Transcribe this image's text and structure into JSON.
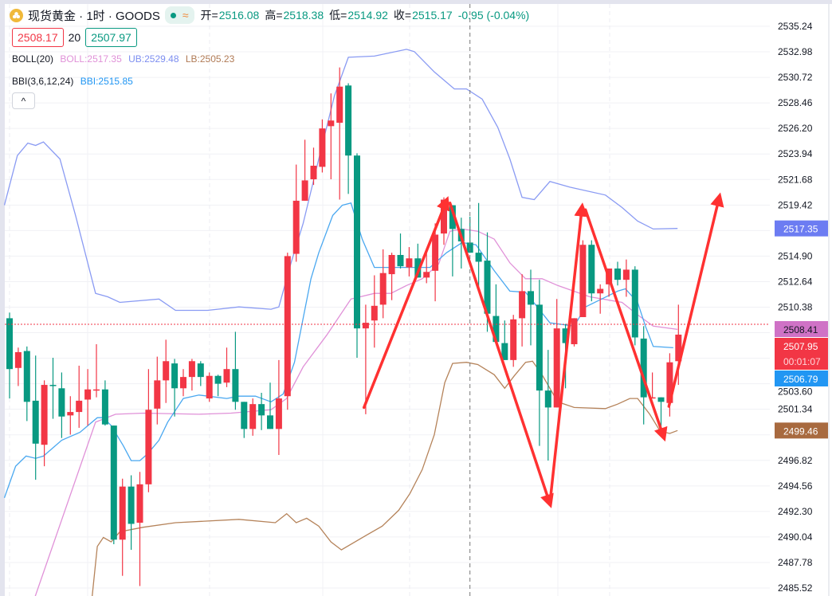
{
  "header": {
    "symbol": "现货黄金 · 1时 · GOODS",
    "status_icon": "green-dot-icon",
    "wave_symbol": "≈",
    "ohlc": {
      "open_label": "开=",
      "open": "2516.08",
      "high_label": "高=",
      "high": "2518.38",
      "low_label": "低=",
      "low": "2514.92",
      "close_label": "收=",
      "close": "2515.17",
      "change": "-0.95 (-0.04%)"
    }
  },
  "order_row": {
    "sell_price": "2508.17",
    "spread": "20",
    "buy_price": "2507.97"
  },
  "indicators": {
    "boll": {
      "name": "BOLL(20)",
      "mid": "BOLL:2517.35",
      "ub": "UB:2529.48",
      "lb": "LB:2505.23"
    },
    "bbi": {
      "name": "BBI(3,6,12,24)",
      "value": "BBI:2515.85"
    },
    "collapse_label": "^"
  },
  "colors": {
    "up": "#f23645",
    "down": "#089981",
    "ub": "#8a9bf3",
    "boll": "#e091d8",
    "lb": "#b5835a",
    "bbi": "#4aa8f0",
    "arrow": "#ff3131"
  },
  "chart_data": {
    "type": "candlestick",
    "ylim": [
      2485.52,
      2535.24
    ],
    "y_ticks": [
      "2535.24",
      "2532.98",
      "2530.72",
      "2528.46",
      "2526.20",
      "2523.94",
      "2521.68",
      "2519.42",
      "2514.90",
      "2512.64",
      "2510.38",
      "2503.60",
      "2501.34",
      "2496.82",
      "2494.56",
      "2492.30",
      "2490.04",
      "2487.78",
      "2485.52"
    ],
    "grid": true,
    "candles": [
      [
        2509.4,
        2509.9,
        2502.3,
        2504.9
      ],
      [
        2505.0,
        2506.8,
        2503.4,
        2506.4
      ],
      [
        2506.5,
        2506.9,
        2500.3,
        2502.0
      ],
      [
        2502.1,
        2506.1,
        2495.1,
        2498.3
      ],
      [
        2498.2,
        2503.9,
        2496.3,
        2503.5
      ],
      [
        2503.5,
        2505.9,
        2500.5,
        2503.4
      ],
      [
        2503.2,
        2504.6,
        2498.8,
        2500.7
      ],
      [
        2500.8,
        2502.5,
        2499.1,
        2501.1
      ],
      [
        2501.1,
        2505.2,
        2499.7,
        2502.1
      ],
      [
        2502.2,
        2504.9,
        2499.9,
        2503.1
      ],
      [
        2503.0,
        2507.1,
        2502.4,
        2503.1
      ],
      [
        2503.1,
        2503.9,
        2499.9,
        2500.0
      ],
      [
        2499.9,
        2499.9,
        2489.4,
        2489.8
      ],
      [
        2489.8,
        2495.2,
        2486.6,
        2494.5
      ],
      [
        2494.5,
        2495.5,
        2488.9,
        2491.2
      ],
      [
        2491.3,
        2495.8,
        2485.7,
        2494.7
      ],
      [
        2494.7,
        2504.9,
        2494.0,
        2501.3
      ],
      [
        2501.4,
        2506.0,
        2500.0,
        2503.9
      ],
      [
        2503.9,
        2507.5,
        2501.9,
        2505.6
      ],
      [
        2505.4,
        2505.8,
        2500.7,
        2503.2
      ],
      [
        2503.2,
        2504.9,
        2502.5,
        2504.2
      ],
      [
        2504.2,
        2505.8,
        2503.0,
        2505.6
      ],
      [
        2505.4,
        2505.6,
        2503.4,
        2504.2
      ],
      [
        2502.3,
        2504.6,
        2502.0,
        2504.3
      ],
      [
        2504.3,
        2504.4,
        2502.5,
        2503.6
      ],
      [
        2503.7,
        2506.8,
        2503.3,
        2504.9
      ],
      [
        2504.9,
        2508.2,
        2501.3,
        2502.0
      ],
      [
        2502.0,
        2502.0,
        2498.8,
        2499.6
      ],
      [
        2499.6,
        2502.3,
        2499.0,
        2501.8
      ],
      [
        2501.8,
        2502.8,
        2499.5,
        2500.8
      ],
      [
        2500.8,
        2503.7,
        2499.6,
        2499.6
      ],
      [
        2499.6,
        2505.7,
        2497.3,
        2502.3
      ],
      [
        2502.5,
        2515.2,
        2501.3,
        2514.9
      ],
      [
        2515.1,
        2523.0,
        2514.4,
        2519.8
      ],
      [
        2519.8,
        2525.2,
        2519.8,
        2521.6
      ],
      [
        2521.7,
        2524.5,
        2521.2,
        2522.9
      ],
      [
        2522.8,
        2527.0,
        2522.3,
        2526.2
      ],
      [
        2526.4,
        2529.3,
        2521.7,
        2526.9
      ],
      [
        2526.7,
        2531.6,
        2519.9,
        2529.9
      ],
      [
        2530.0,
        2530.2,
        2520.4,
        2523.8
      ],
      [
        2523.8,
        2524.0,
        2505.9,
        2508.5
      ],
      [
        2508.5,
        2510.6,
        2500.9,
        2509.0
      ],
      [
        2509.2,
        2513.2,
        2506.8,
        2510.5
      ],
      [
        2510.6,
        2515.5,
        2509.4,
        2513.4
      ],
      [
        2513.3,
        2515.2,
        2511.0,
        2515.0
      ],
      [
        2515.0,
        2516.9,
        2513.8,
        2514.0
      ],
      [
        2513.9,
        2515.7,
        2513.1,
        2514.7
      ],
      [
        2514.7,
        2516.0,
        2513.0,
        2513.0
      ],
      [
        2513.0,
        2515.6,
        2512.5,
        2513.5
      ],
      [
        2513.6,
        2517.8,
        2510.9,
        2516.8
      ],
      [
        2516.9,
        2520.1,
        2515.9,
        2519.9
      ],
      [
        2519.4,
        2519.4,
        2513.1,
        2517.3
      ],
      [
        2517.3,
        2518.3,
        2513.8,
        2516.2
      ],
      [
        2516.1,
        2518.4,
        2515.2,
        2515.2
      ],
      [
        2515.2,
        2519.6,
        2511.8,
        2514.4
      ],
      [
        2514.5,
        2517.0,
        2508.2,
        2509.8
      ],
      [
        2509.6,
        2512.4,
        2507.3,
        2507.3
      ],
      [
        2507.2,
        2509.2,
        2505.7,
        2505.7
      ],
      [
        2505.7,
        2509.7,
        2505.1,
        2509.3
      ],
      [
        2509.4,
        2513.3,
        2506.9,
        2511.8
      ],
      [
        2511.8,
        2513.7,
        2507.0,
        2510.6
      ],
      [
        2510.6,
        2512.8,
        2498.1,
        2503.0
      ],
      [
        2503.0,
        2506.6,
        2496.8,
        2501.5
      ],
      [
        2501.5,
        2511.1,
        2501.5,
        2508.5
      ],
      [
        2508.5,
        2508.9,
        2503.2,
        2507.2
      ],
      [
        2507.1,
        2509.4,
        2506.9,
        2509.4
      ],
      [
        2509.5,
        2516.3,
        2509.5,
        2515.9
      ],
      [
        2515.9,
        2516.3,
        2510.9,
        2511.6
      ],
      [
        2511.6,
        2512.4,
        2509.8,
        2512.0
      ],
      [
        2512.4,
        2513.8,
        2511.3,
        2513.8
      ],
      [
        2513.8,
        2514.4,
        2512.3,
        2512.8
      ],
      [
        2512.8,
        2514.6,
        2511.3,
        2513.7
      ],
      [
        2513.7,
        2514.0,
        2507.0,
        2507.7
      ],
      [
        2507.6,
        2508.7,
        2500.0,
        2502.4
      ],
      [
        2502.3,
        2504.6,
        2502.3,
        2502.4
      ],
      [
        2502.4,
        2502.4,
        2499.6,
        2502.0
      ],
      [
        2501.9,
        2506.3,
        2500.7,
        2505.5
      ],
      [
        2505.6,
        2510.6,
        2503.5,
        2507.95
      ]
    ],
    "candle_format": [
      "open",
      "high",
      "low",
      "close"
    ],
    "lines": {
      "ub": [
        [
          -0.6,
          2519.4
        ],
        [
          0.9,
          2523.8
        ],
        [
          2.1,
          2524.9
        ],
        [
          3.0,
          2524.7
        ],
        [
          3.9,
          2525.0
        ],
        [
          5.8,
          2523.5
        ],
        [
          7.6,
          2518.5
        ],
        [
          9.9,
          2511.6
        ],
        [
          11.3,
          2511.3
        ],
        [
          12.7,
          2510.8
        ],
        [
          17.2,
          2511.1
        ],
        [
          19.1,
          2510.1
        ],
        [
          22.8,
          2510.1
        ],
        [
          26.4,
          2510.4
        ],
        [
          30.1,
          2510.2
        ],
        [
          31.0,
          2510.4
        ],
        [
          32.4,
          2514.3
        ],
        [
          33.8,
          2517.8
        ],
        [
          35.6,
          2523.5
        ],
        [
          37.4,
          2529.1
        ],
        [
          39.0,
          2532.5
        ],
        [
          42.0,
          2532.6
        ],
        [
          45.7,
          2533.2
        ],
        [
          46.6,
          2533.0
        ],
        [
          48.9,
          2531.2
        ],
        [
          51.2,
          2529.7
        ],
        [
          52.6,
          2529.7
        ],
        [
          54.4,
          2528.8
        ],
        [
          56.2,
          2526.3
        ],
        [
          57.6,
          2523.5
        ],
        [
          59.0,
          2520.1
        ],
        [
          60.4,
          2519.9
        ],
        [
          62.2,
          2521.5
        ],
        [
          64.5,
          2521.0
        ],
        [
          68.6,
          2520.3
        ],
        [
          70.5,
          2519.2
        ],
        [
          72.3,
          2518.0
        ],
        [
          74.1,
          2517.3
        ],
        [
          76.9,
          2517.35
        ]
      ],
      "boll": [
        [
          2.6,
          2484.0
        ],
        [
          9.9,
          2500.2
        ],
        [
          12.2,
          2500.9
        ],
        [
          15.4,
          2501.0
        ],
        [
          21.8,
          2500.9
        ],
        [
          25.5,
          2501.0
        ],
        [
          30.1,
          2501.3
        ],
        [
          31.9,
          2502.3
        ],
        [
          33.8,
          2505.1
        ],
        [
          36.5,
          2507.9
        ],
        [
          39.3,
          2511.1
        ],
        [
          42.0,
          2511.6
        ],
        [
          43.9,
          2511.6
        ],
        [
          45.7,
          2512.3
        ],
        [
          47.5,
          2512.9
        ],
        [
          49.4,
          2514.2
        ],
        [
          50.7,
          2517.1
        ],
        [
          52.1,
          2517.3
        ],
        [
          53.9,
          2517.1
        ],
        [
          55.8,
          2516.4
        ],
        [
          57.6,
          2514.3
        ],
        [
          59.4,
          2512.9
        ],
        [
          61.3,
          2512.9
        ],
        [
          63.1,
          2512.3
        ],
        [
          66.8,
          2511.3
        ],
        [
          70.5,
          2510.8
        ],
        [
          72.3,
          2509.7
        ],
        [
          74.1,
          2508.7
        ],
        [
          76.9,
          2508.41
        ]
      ],
      "lb": [
        [
          9.4,
          2484.0
        ],
        [
          10.1,
          2489.2
        ],
        [
          10.8,
          2490.0
        ],
        [
          11.7,
          2489.6
        ],
        [
          12.7,
          2490.5
        ],
        [
          15.4,
          2490.9
        ],
        [
          19.1,
          2491.3
        ],
        [
          26.4,
          2491.6
        ],
        [
          30.6,
          2491.3
        ],
        [
          31.9,
          2492.1
        ],
        [
          33.0,
          2491.3
        ],
        [
          34.2,
          2491.7
        ],
        [
          35.6,
          2491.0
        ],
        [
          37.0,
          2489.6
        ],
        [
          38.2,
          2488.9
        ],
        [
          41.1,
          2490.2
        ],
        [
          42.9,
          2491.0
        ],
        [
          44.8,
          2492.4
        ],
        [
          46.1,
          2493.9
        ],
        [
          47.5,
          2496.0
        ],
        [
          48.9,
          2499.1
        ],
        [
          50.1,
          2503.7
        ],
        [
          51.0,
          2505.4
        ],
        [
          52.6,
          2505.5
        ],
        [
          53.9,
          2505.3
        ],
        [
          55.8,
          2504.4
        ],
        [
          57.0,
          2503.2
        ],
        [
          58.1,
          2504.3
        ],
        [
          59.4,
          2505.5
        ],
        [
          60.2,
          2505.6
        ],
        [
          61.3,
          2504.4
        ],
        [
          63.1,
          2502.0
        ],
        [
          65.0,
          2501.5
        ],
        [
          68.6,
          2501.4
        ],
        [
          70.0,
          2501.8
        ],
        [
          71.4,
          2502.3
        ],
        [
          72.3,
          2502.3
        ],
        [
          73.7,
          2500.9
        ],
        [
          74.9,
          2499.4
        ],
        [
          76.0,
          2499.2
        ],
        [
          76.9,
          2499.46
        ]
      ],
      "bbi": [
        [
          -0.6,
          2493.5
        ],
        [
          0.7,
          2496.3
        ],
        [
          1.9,
          2497.2
        ],
        [
          3.0,
          2497.0
        ],
        [
          3.9,
          2497.2
        ],
        [
          6.0,
          2498.6
        ],
        [
          8.1,
          2499.3
        ],
        [
          10.1,
          2500.6
        ],
        [
          10.8,
          2500.6
        ],
        [
          11.7,
          2499.9
        ],
        [
          13.1,
          2498.1
        ],
        [
          14.0,
          2496.8
        ],
        [
          15.0,
          2496.8
        ],
        [
          15.9,
          2497.4
        ],
        [
          17.2,
          2498.6
        ],
        [
          18.2,
          2500.2
        ],
        [
          20.0,
          2502.3
        ],
        [
          21.8,
          2502.6
        ],
        [
          25.0,
          2502.3
        ],
        [
          26.4,
          2502.5
        ],
        [
          28.3,
          2502.5
        ],
        [
          30.1,
          2502.0
        ],
        [
          31.5,
          2502.7
        ],
        [
          32.8,
          2505.5
        ],
        [
          33.8,
          2509.4
        ],
        [
          34.7,
          2512.9
        ],
        [
          35.6,
          2515.2
        ],
        [
          37.2,
          2518.5
        ],
        [
          38.3,
          2519.4
        ],
        [
          39.3,
          2519.6
        ],
        [
          40.6,
          2516.4
        ],
        [
          42.0,
          2513.9
        ],
        [
          48.4,
          2513.9
        ],
        [
          50.3,
          2515.2
        ],
        [
          52.1,
          2516.1
        ],
        [
          53.7,
          2515.9
        ],
        [
          55.8,
          2513.6
        ],
        [
          57.6,
          2511.8
        ],
        [
          59.4,
          2511.7
        ],
        [
          62.2,
          2509.0
        ],
        [
          65.0,
          2508.7
        ],
        [
          66.3,
          2510.4
        ],
        [
          70.0,
          2511.8
        ],
        [
          70.9,
          2512.0
        ],
        [
          72.3,
          2510.8
        ],
        [
          73.2,
          2508.7
        ],
        [
          74.1,
          2506.9
        ],
        [
          76.4,
          2506.79
        ]
      ]
    },
    "annotation_arrows": [
      [
        [
          40.8,
          2501.5
        ],
        [
          50.3,
          2519.8
        ]
      ],
      [
        [
          50.7,
          2519.6
        ],
        [
          62.2,
          2493.0
        ]
      ],
      [
        [
          62.2,
          2493.0
        ],
        [
          65.9,
          2519.2
        ]
      ],
      [
        [
          66.3,
          2519.0
        ],
        [
          75.3,
          2498.9
        ]
      ],
      [
        [
          75.9,
          2501.6
        ],
        [
          81.7,
          2520.1
        ]
      ]
    ],
    "crosshair_index": 53,
    "last_price_line": 2507.95,
    "price_badges": [
      {
        "value": "2517.35",
        "color": "#6c7cf2",
        "price": 2517.35
      },
      {
        "value": "2508.41",
        "color": "#cf72c6",
        "price": 2508.41,
        "text_color": "#131722"
      },
      {
        "value": "2507.95",
        "color": "#f23645",
        "price": 2507.95,
        "sub": "00:01:07"
      },
      {
        "value": "2506.79",
        "color": "#2196f3",
        "price": 2506.79
      },
      {
        "value": "2499.46",
        "color": "#a86a3f",
        "price": 2499.46
      }
    ]
  }
}
